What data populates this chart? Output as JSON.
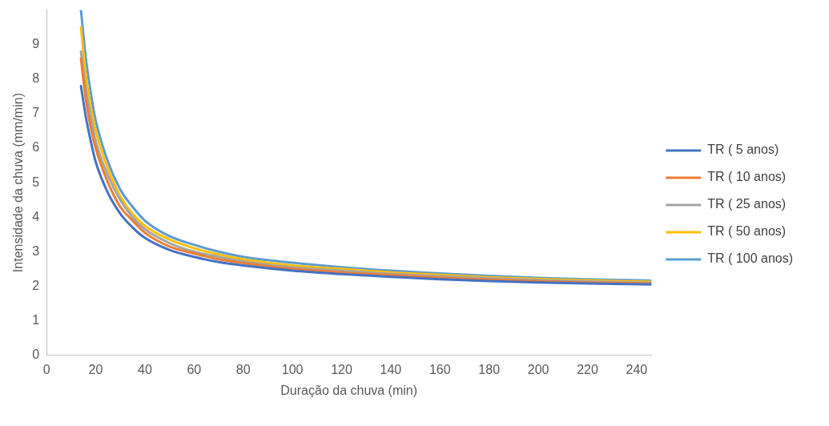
{
  "chart_data": {
    "type": "line",
    "xlabel": "Duração da chuva (min)",
    "ylabel": "Intensidade da chuva (mm/min)",
    "x": [
      14,
      16,
      18,
      20,
      25,
      30,
      35,
      40,
      50,
      60,
      70,
      80,
      100,
      120,
      140,
      160,
      180,
      200,
      220,
      246
    ],
    "xlim": [
      0,
      246
    ],
    "xticks": [
      0,
      20,
      40,
      60,
      80,
      100,
      120,
      140,
      160,
      180,
      200,
      220,
      240
    ],
    "ylim": [
      0,
      10
    ],
    "yticks": [
      0,
      1,
      2,
      3,
      4,
      5,
      6,
      7,
      8,
      9
    ],
    "grid": false,
    "legend": "right",
    "marker": "none",
    "line_style": "solid",
    "series": [
      {
        "name": "TR ( 5 anos)",
        "color": "#4472c4",
        "values": [
          7.8,
          6.9,
          6.2,
          5.6,
          4.7,
          4.1,
          3.7,
          3.4,
          3.05,
          2.85,
          2.7,
          2.6,
          2.45,
          2.35,
          2.27,
          2.2,
          2.15,
          2.11,
          2.08,
          2.05
        ]
      },
      {
        "name": "TR ( 10 anos)",
        "color": "#ed7d31",
        "values": [
          8.6,
          7.4,
          6.6,
          6.0,
          5.0,
          4.3,
          3.9,
          3.55,
          3.15,
          2.95,
          2.78,
          2.67,
          2.5,
          2.4,
          2.32,
          2.25,
          2.19,
          2.14,
          2.11,
          2.08
        ]
      },
      {
        "name": "TR ( 25 anos)",
        "color": "#a5a5a5",
        "values": [
          8.8,
          7.7,
          6.9,
          6.2,
          5.2,
          4.5,
          4.0,
          3.65,
          3.25,
          3.0,
          2.85,
          2.72,
          2.55,
          2.45,
          2.36,
          2.29,
          2.23,
          2.18,
          2.14,
          2.1
        ]
      },
      {
        "name": "TR ( 50 anos)",
        "color": "#ffc000",
        "values": [
          9.5,
          8.1,
          7.2,
          6.5,
          5.4,
          4.6,
          4.1,
          3.75,
          3.35,
          3.1,
          2.92,
          2.78,
          2.6,
          2.5,
          2.4,
          2.33,
          2.26,
          2.21,
          2.17,
          2.13
        ]
      },
      {
        "name": "TR ( 100 anos)",
        "color": "#5b9bd5",
        "values": [
          10,
          8.6,
          7.6,
          6.8,
          5.6,
          4.8,
          4.3,
          3.9,
          3.45,
          3.2,
          3.0,
          2.85,
          2.68,
          2.55,
          2.45,
          2.37,
          2.3,
          2.24,
          2.2,
          2.16
        ]
      }
    ]
  }
}
